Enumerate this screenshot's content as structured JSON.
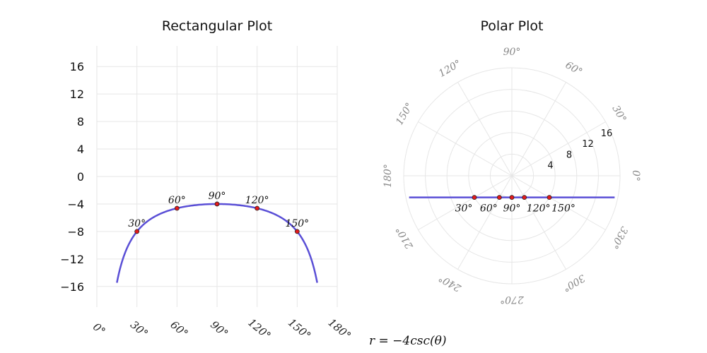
{
  "formula": "r = −4csc(θ)",
  "colors": {
    "curve": "#5a4fd6",
    "point": "#e41a1c",
    "grid": "#e6e6e6"
  },
  "chart_data": [
    {
      "type": "line",
      "title": "Rectangular Plot",
      "xlabel": "",
      "ylabel": "",
      "x_unit": "degrees",
      "xlim": [
        0,
        180
      ],
      "ylim": [
        -19,
        19
      ],
      "xticks": [
        0,
        30,
        60,
        90,
        120,
        150,
        180
      ],
      "xtick_labels": [
        "0°",
        "30°",
        "60°",
        "90°",
        "120°",
        "150°",
        "180°"
      ],
      "yticks": [
        16,
        12,
        8,
        4,
        0,
        -4,
        -8,
        -12,
        -16
      ],
      "ytick_labels": [
        "16",
        "12",
        "8",
        "4",
        "0",
        "−4",
        "−8",
        "−12",
        "−16"
      ],
      "curve_x_range": [
        15,
        165
      ],
      "points": [
        {
          "x": 30,
          "y": -8,
          "label": "30°"
        },
        {
          "x": 60,
          "y": -4.62,
          "label": "60°"
        },
        {
          "x": 90,
          "y": -4,
          "label": "90°"
        },
        {
          "x": 120,
          "y": -4.62,
          "label": "120°"
        },
        {
          "x": 150,
          "y": -8,
          "label": "150°"
        }
      ],
      "grid": true
    },
    {
      "type": "polar",
      "title": "Polar Plot",
      "rlim": [
        0,
        20
      ],
      "rticks": [
        4,
        8,
        12,
        16
      ],
      "rtick_labels": [
        "4",
        "8",
        "12",
        "16"
      ],
      "angle_ticks": [
        0,
        30,
        60,
        90,
        120,
        150,
        180,
        210,
        240,
        270,
        300,
        330
      ],
      "angle_labels": [
        "0°",
        "30°",
        "60°",
        "90°",
        "120°",
        "150°",
        "180°",
        "210°",
        "240°",
        "270°",
        "300°",
        "330°"
      ],
      "line_y": -4,
      "line_x_range": [
        -19,
        19
      ],
      "points": [
        {
          "theta": 30,
          "r": -8,
          "label": "30°"
        },
        {
          "theta": 60,
          "r": -4.62,
          "label": "60°"
        },
        {
          "theta": 90,
          "r": -4,
          "label": "90°"
        },
        {
          "theta": 120,
          "r": -4.62,
          "label": "120°"
        },
        {
          "theta": 150,
          "r": -8,
          "label": "150°"
        }
      ],
      "grid": true
    }
  ]
}
